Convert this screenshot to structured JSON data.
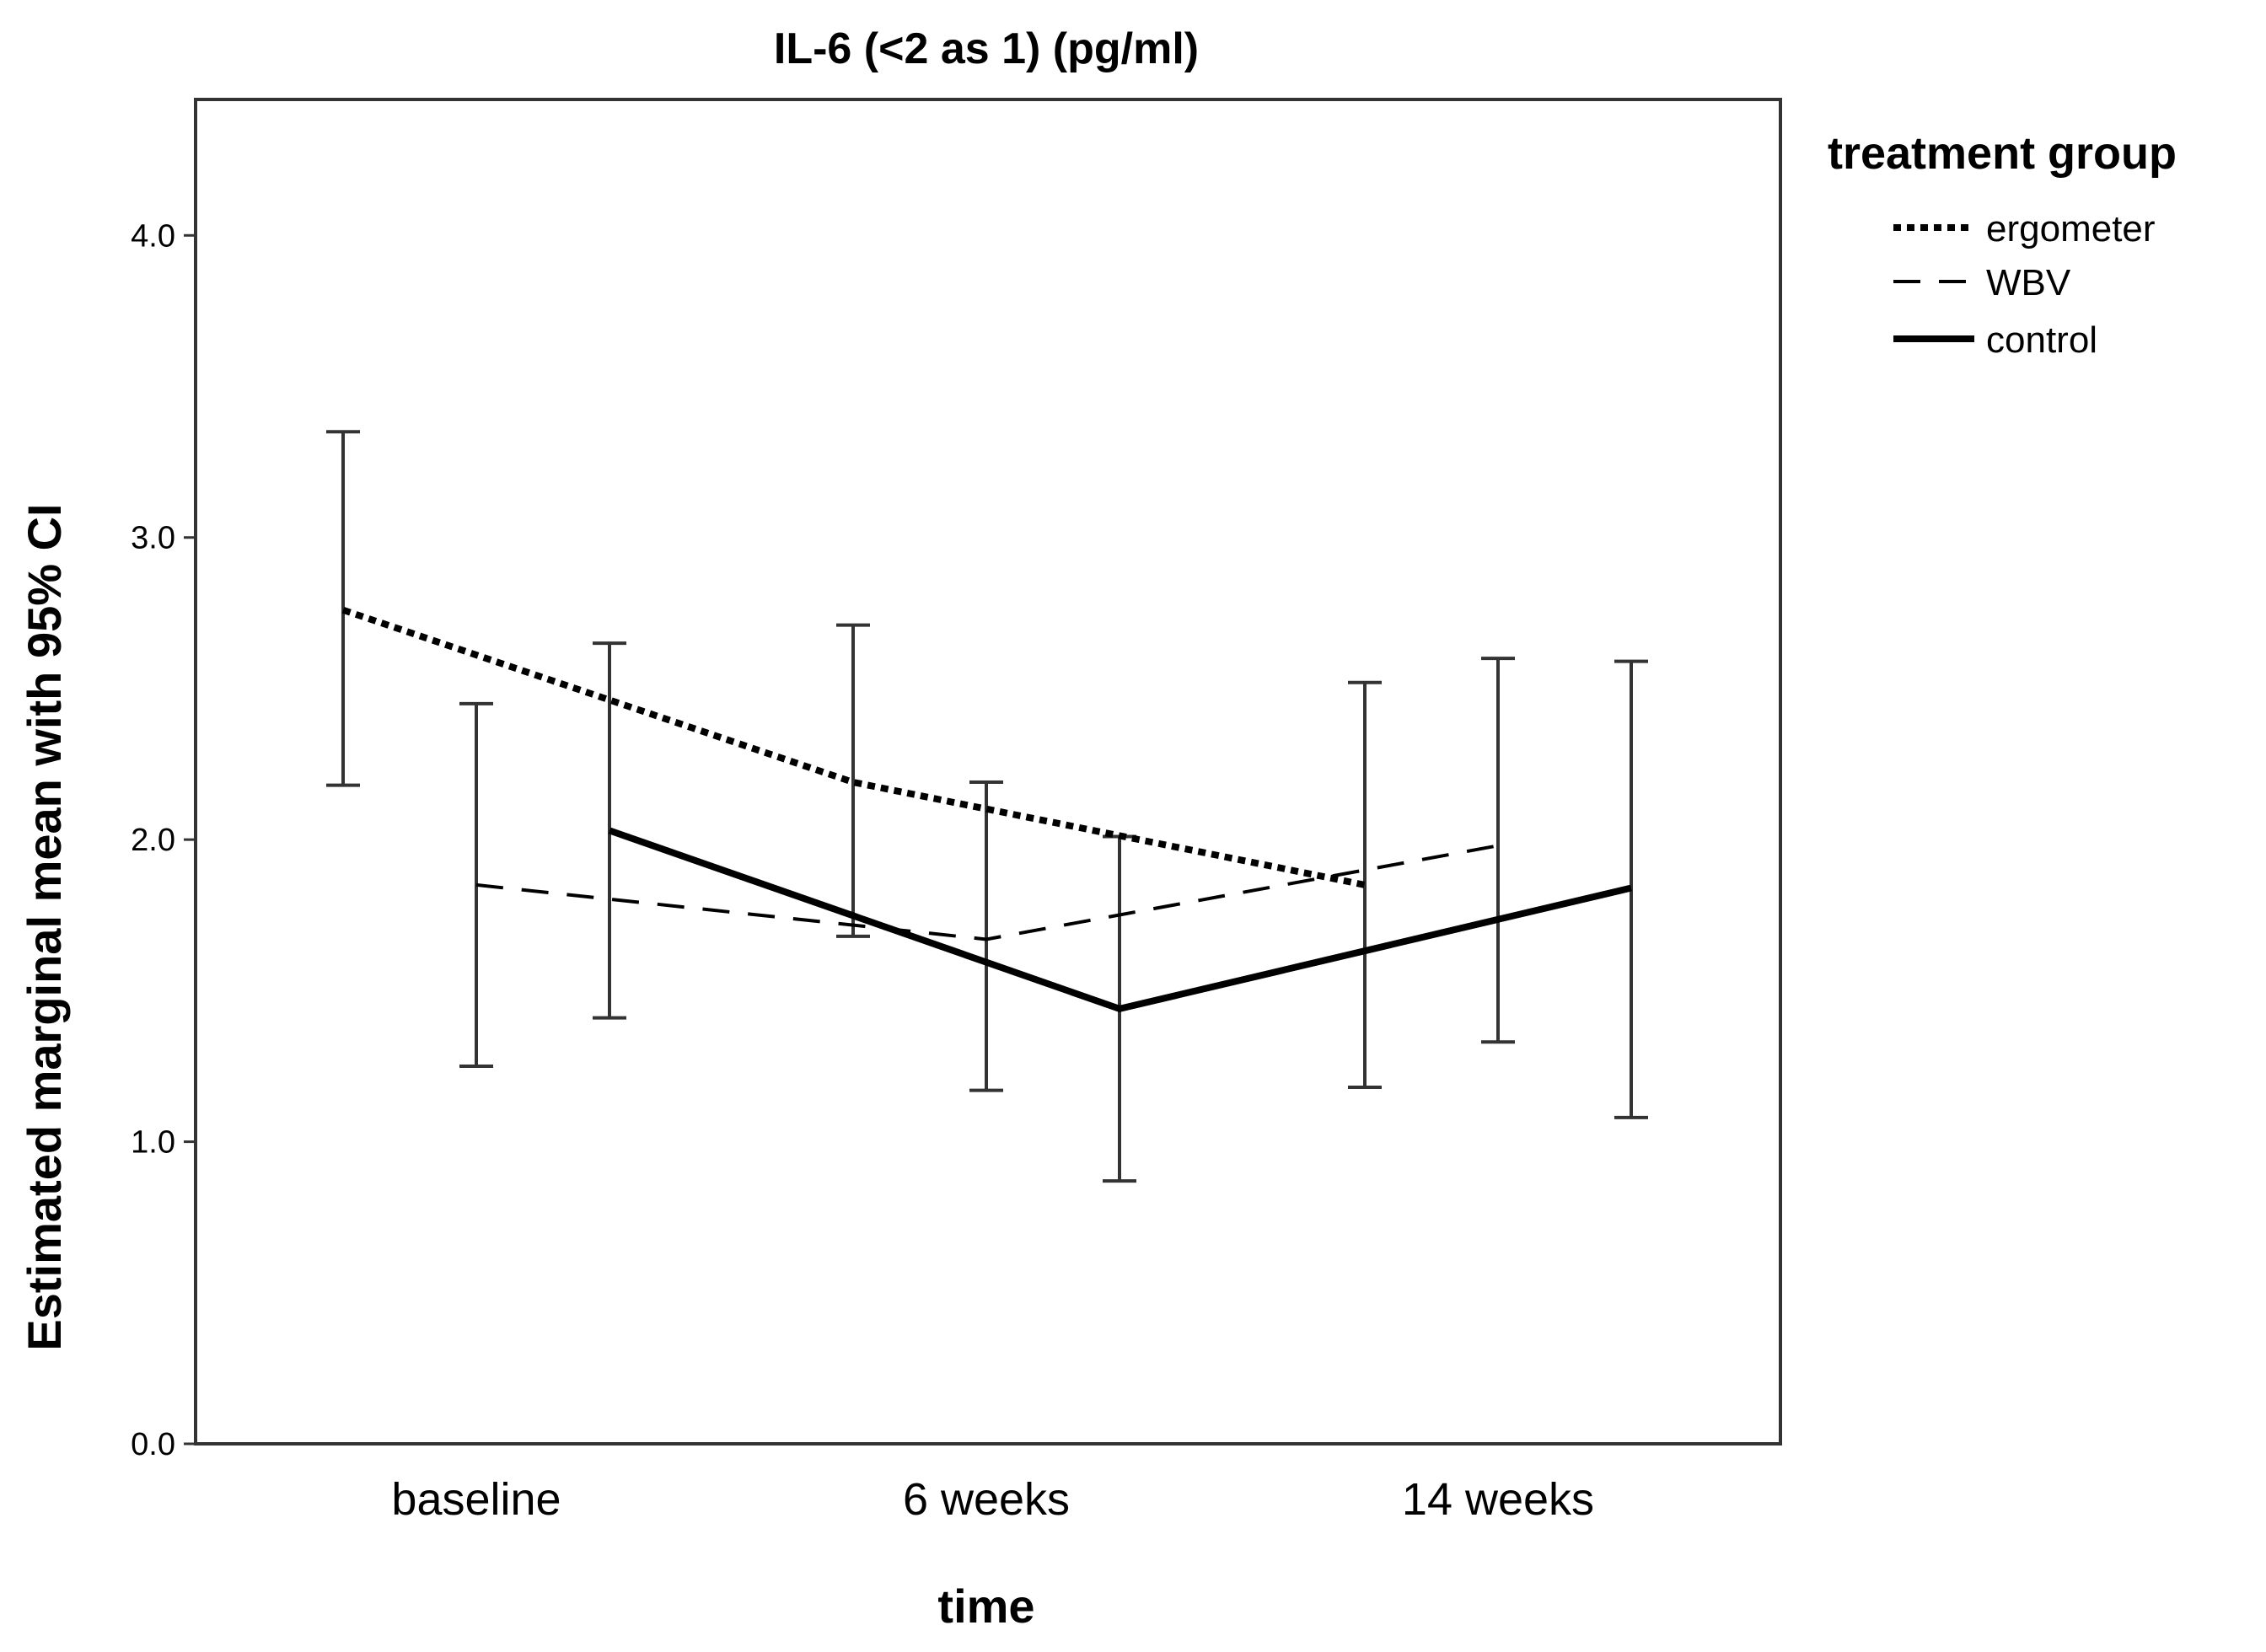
{
  "chart_data": {
    "type": "line",
    "title": "IL-6 (<2 as 1) (pg/ml)",
    "xlabel": "time",
    "ylabel": "Estimated marginal mean with 95% CI",
    "categories": [
      "baseline",
      "6 weeks",
      "14 weeks"
    ],
    "ylim": [
      0,
      4.45
    ],
    "yticks": [
      "0.0",
      "1.0",
      "2.0",
      "3.0",
      "4.0"
    ],
    "legend": {
      "title": "treatment group",
      "position": "right"
    },
    "series": [
      {
        "name": "ergometer",
        "style": "dotted",
        "values": [
          2.76,
          2.19,
          1.85
        ],
        "ci_low": [
          2.18,
          1.68,
          1.18
        ],
        "ci_high": [
          3.35,
          2.71,
          2.52
        ]
      },
      {
        "name": "WBV",
        "style": "dashed",
        "values": [
          1.85,
          1.67,
          1.98
        ],
        "ci_low": [
          1.25,
          1.17,
          1.33
        ],
        "ci_high": [
          2.45,
          2.19,
          2.6
        ]
      },
      {
        "name": "control",
        "style": "solid",
        "values": [
          2.03,
          1.44,
          1.84
        ],
        "ci_low": [
          1.41,
          0.87,
          1.08
        ],
        "ci_high": [
          2.65,
          2.01,
          2.59
        ]
      }
    ]
  }
}
